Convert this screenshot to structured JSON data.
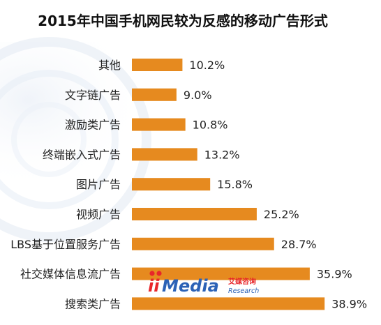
{
  "chart_data": {
    "type": "bar",
    "orientation": "horizontal",
    "title": "2015年中国手机网民较为反感的移动广告形式",
    "categories": [
      "其他",
      "文字链广告",
      "激励类广告",
      "终端嵌入式广告",
      "图片广告",
      "视频广告",
      "LBS基于位置服务广告",
      "社交媒体信息流广告",
      "搜索类广告"
    ],
    "values": [
      10.2,
      9.0,
      10.8,
      13.2,
      15.8,
      25.2,
      28.7,
      35.9,
      38.9
    ],
    "value_labels": [
      "10.2%",
      "9.0%",
      "10.8%",
      "13.2%",
      "15.8%",
      "25.2%",
      "28.7%",
      "35.9%",
      "38.9%"
    ],
    "unit": "%",
    "xlim": [
      0,
      40
    ],
    "grid": false,
    "legend": "none",
    "colors": {
      "bar": "#E68A1F",
      "title": "#111111",
      "label": "#222222"
    }
  },
  "watermark": {
    "logo_text": "iiMedia",
    "cn_text": "艾媒咨询",
    "en_text": "Research",
    "colors": {
      "i_dots": "#E8262A",
      "media": "#2C62B6",
      "cn": "#E8262A",
      "en": "#2C62B6"
    }
  }
}
